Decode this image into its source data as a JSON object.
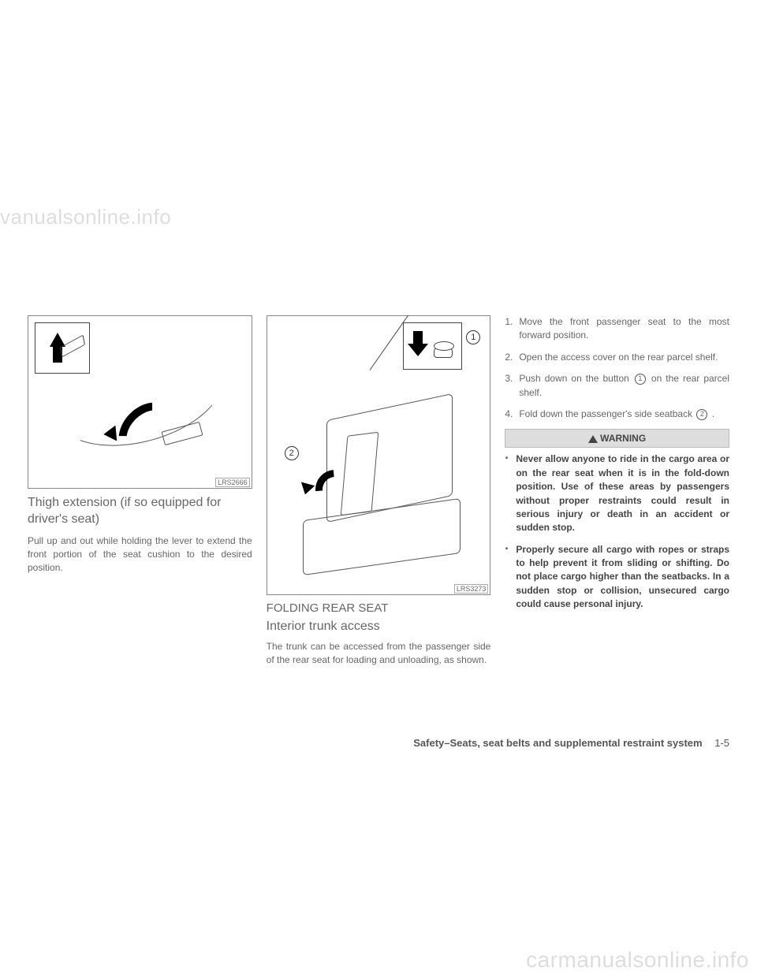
{
  "watermarks": {
    "top": "vanualsonline.info",
    "bottom": "carmanualsonline.info"
  },
  "column1": {
    "figure_label": "LRS2666",
    "heading": "Thigh extension (if so equipped for driver's seat)",
    "body": "Pull up and out while holding the lever to extend the front portion of the seat cushion to the desired position."
  },
  "column2": {
    "figure_label": "LRS3273",
    "circle1": "1",
    "circle2": "2",
    "heading_caps": "FOLDING REAR SEAT",
    "heading_sub": "Interior trunk access",
    "body": "The trunk can be accessed from the passenger side of the rear seat for loading and unloading, as shown."
  },
  "column3": {
    "steps": [
      {
        "pre": "Move the front passenger seat to the most forward position.",
        "num": ""
      },
      {
        "pre": "Open the access cover on the rear parcel shelf.",
        "num": ""
      },
      {
        "pre": "Push down on the button ",
        "num": "1",
        "post": " on the rear parcel shelf."
      },
      {
        "pre": "Fold down the passenger's side seatback ",
        "num": "2",
        "post": " ."
      }
    ],
    "warning_label": "WARNING",
    "warnings": [
      "Never allow anyone to ride in the cargo area or on the rear seat when it is in the fold-down position. Use of these areas by passengers without proper restraints could result in serious injury or death in an accident or sudden stop.",
      "Properly secure all cargo with ropes or straps to help prevent it from sliding or shifting. Do not place cargo higher than the seatbacks. In a sudden stop or collision, unsecured cargo could cause personal injury."
    ]
  },
  "footer": {
    "section": "Safety–Seats, seat belts and supplemental restraint system",
    "page": "1-5"
  }
}
